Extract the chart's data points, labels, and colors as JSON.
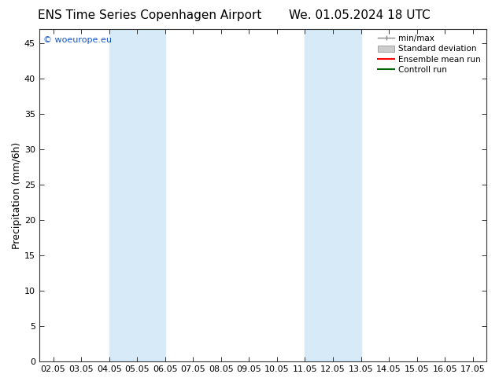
{
  "title_left": "ENS Time Series Copenhagen Airport",
  "title_right": "We. 01.05.2024 18 UTC",
  "ylabel": "Precipitation (mm/6h)",
  "xlim_min": 1.55,
  "xlim_max": 17.55,
  "ylim_min": 0,
  "ylim_max": 47,
  "xticks": [
    2.05,
    3.05,
    4.05,
    5.05,
    6.05,
    7.05,
    8.05,
    9.05,
    10.05,
    11.05,
    12.05,
    13.05,
    14.05,
    15.05,
    16.05,
    17.05
  ],
  "xtick_labels": [
    "02.05",
    "03.05",
    "04.05",
    "05.05",
    "06.05",
    "07.05",
    "08.05",
    "09.05",
    "10.05",
    "11.05",
    "12.05",
    "13.05",
    "14.05",
    "15.05",
    "16.05",
    "17.05"
  ],
  "yticks": [
    0,
    5,
    10,
    15,
    20,
    25,
    30,
    35,
    40,
    45
  ],
  "shaded_bands": [
    {
      "xmin": 4.05,
      "xmax": 5.05,
      "color": "#d6eaf8"
    },
    {
      "xmin": 5.05,
      "xmax": 6.05,
      "color": "#d6eaf8"
    },
    {
      "xmin": 11.05,
      "xmax": 12.05,
      "color": "#d6eaf8"
    },
    {
      "xmin": 12.05,
      "xmax": 13.05,
      "color": "#d6eaf8"
    }
  ],
  "background_color": "#ffffff",
  "plot_bg_color": "#ffffff",
  "watermark_text": "© woeurope.eu",
  "watermark_color": "#1155cc",
  "legend_labels": [
    "min/max",
    "Standard deviation",
    "Ensemble mean run",
    "Controll run"
  ],
  "title_fontsize": 11,
  "tick_fontsize": 8,
  "ylabel_fontsize": 9
}
